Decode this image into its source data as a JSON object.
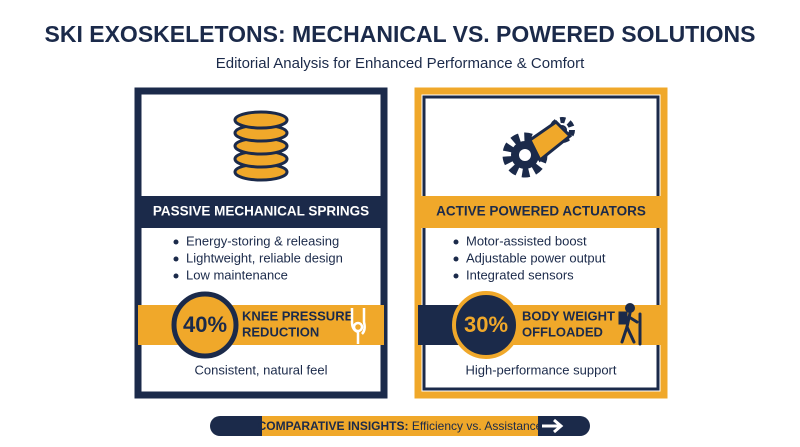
{
  "header": {
    "title": "SKI EXOSKELETONS: MECHANICAL VS. POWERED SOLUTIONS",
    "subtitle": "Editorial Analysis for Enhanced Performance & Comfort"
  },
  "panels": [
    {
      "heading": "PASSIVE MECHANICAL SPRINGS",
      "features": [
        "Energy-storing & releasing",
        "Lightweight, reliable design",
        "Low maintenance"
      ],
      "stat": "40%",
      "stat_label": [
        "KNEE PRESSURE",
        "REDUCTION"
      ],
      "footer": "Consistent, natural feel"
    },
    {
      "heading": "ACTIVE POWERED ACTUATORS",
      "features": [
        "Motor-assisted boost",
        "Adjustable power output",
        "Integrated sensors"
      ],
      "stat": "30%",
      "stat_label": [
        "BODY WEIGHT",
        "OFFLOADED"
      ],
      "footer": "High-performance support"
    }
  ],
  "footer": {
    "label": "COMPARATIVE INSIGHTS:",
    "text": "Efficiency vs. Assistance"
  }
}
